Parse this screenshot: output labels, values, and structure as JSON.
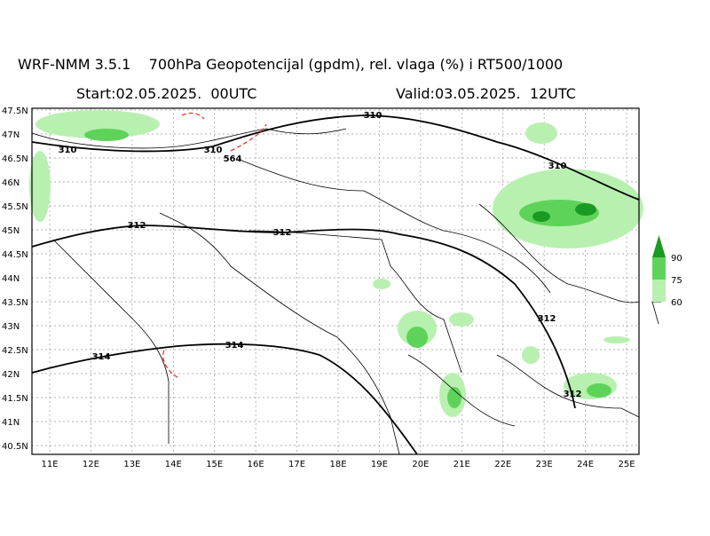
{
  "header": {
    "title": "WRF-NMM 3.5.1    700hPa Geopotencijal (gpdm), rel. vlaga (%) i RT500/1000",
    "start": "Start:02.05.2025.  00UTC",
    "valid": "Valid:03.05.2025.  12UTC"
  },
  "map": {
    "lat_labels": [
      "47.5N",
      "47N",
      "46.5N",
      "46N",
      "45.5N",
      "45N",
      "44.5N",
      "44N",
      "43.5N",
      "43N",
      "42.5N",
      "42N",
      "41.5N",
      "41N",
      "40.5N"
    ],
    "lon_labels": [
      "11E",
      "12E",
      "13E",
      "14E",
      "15E",
      "16E",
      "17E",
      "18E",
      "19E",
      "20E",
      "21E",
      "22E",
      "23E",
      "24E",
      "25E"
    ],
    "contour_labels": [
      310,
      310,
      310,
      310,
      312,
      312,
      312,
      312,
      314,
      314,
      564
    ]
  },
  "legend": {
    "levels": [
      90,
      75,
      60
    ]
  }
}
